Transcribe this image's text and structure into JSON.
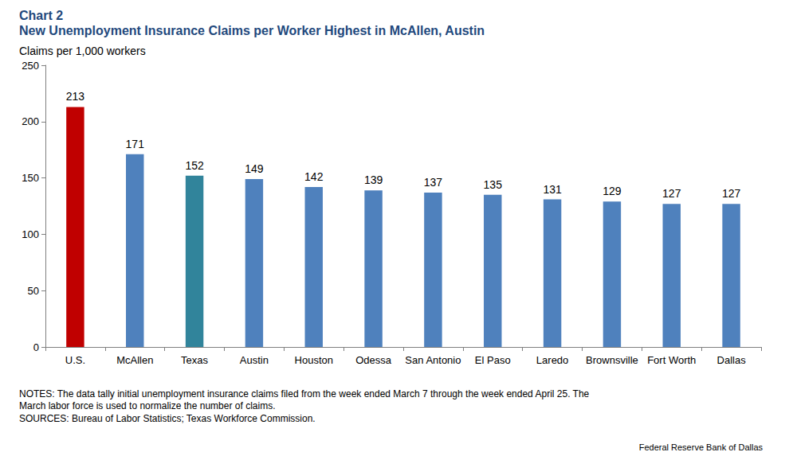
{
  "chart_data": {
    "type": "bar",
    "title": "Chart 2",
    "subtitle": "New Unemployment Insurance Claims per Worker Highest in McAllen, Austin",
    "ylabel": "Claims per 1,000 workers",
    "categories": [
      "U.S.",
      "McAllen",
      "Texas",
      "Austin",
      "Houston",
      "Odessa",
      "San Antonio",
      "El Paso",
      "Laredo",
      "Brownsville",
      "Fort Worth",
      "Dallas"
    ],
    "values": [
      213,
      171,
      152,
      149,
      142,
      139,
      137,
      135,
      131,
      129,
      127,
      127
    ],
    "colors": [
      "#c00000",
      "#4f81bd",
      "#31849b",
      "#4f81bd",
      "#4f81bd",
      "#4f81bd",
      "#4f81bd",
      "#4f81bd",
      "#4f81bd",
      "#4f81bd",
      "#4f81bd",
      "#4f81bd"
    ],
    "ylim": [
      0,
      250
    ],
    "yticks": [
      0,
      50,
      100,
      150,
      200,
      250
    ],
    "grid": false,
    "data_labels": true,
    "notes": "NOTES: The data tally initial unemployment insurance claims filed from the week ended March 7 through the week ended April 25. The March labor force is used to normalize the number of claims.",
    "sources": "SOURCES: Bureau of Labor Statistics; Texas Workforce Commission.",
    "credit": "Federal Reserve Bank of Dallas"
  }
}
